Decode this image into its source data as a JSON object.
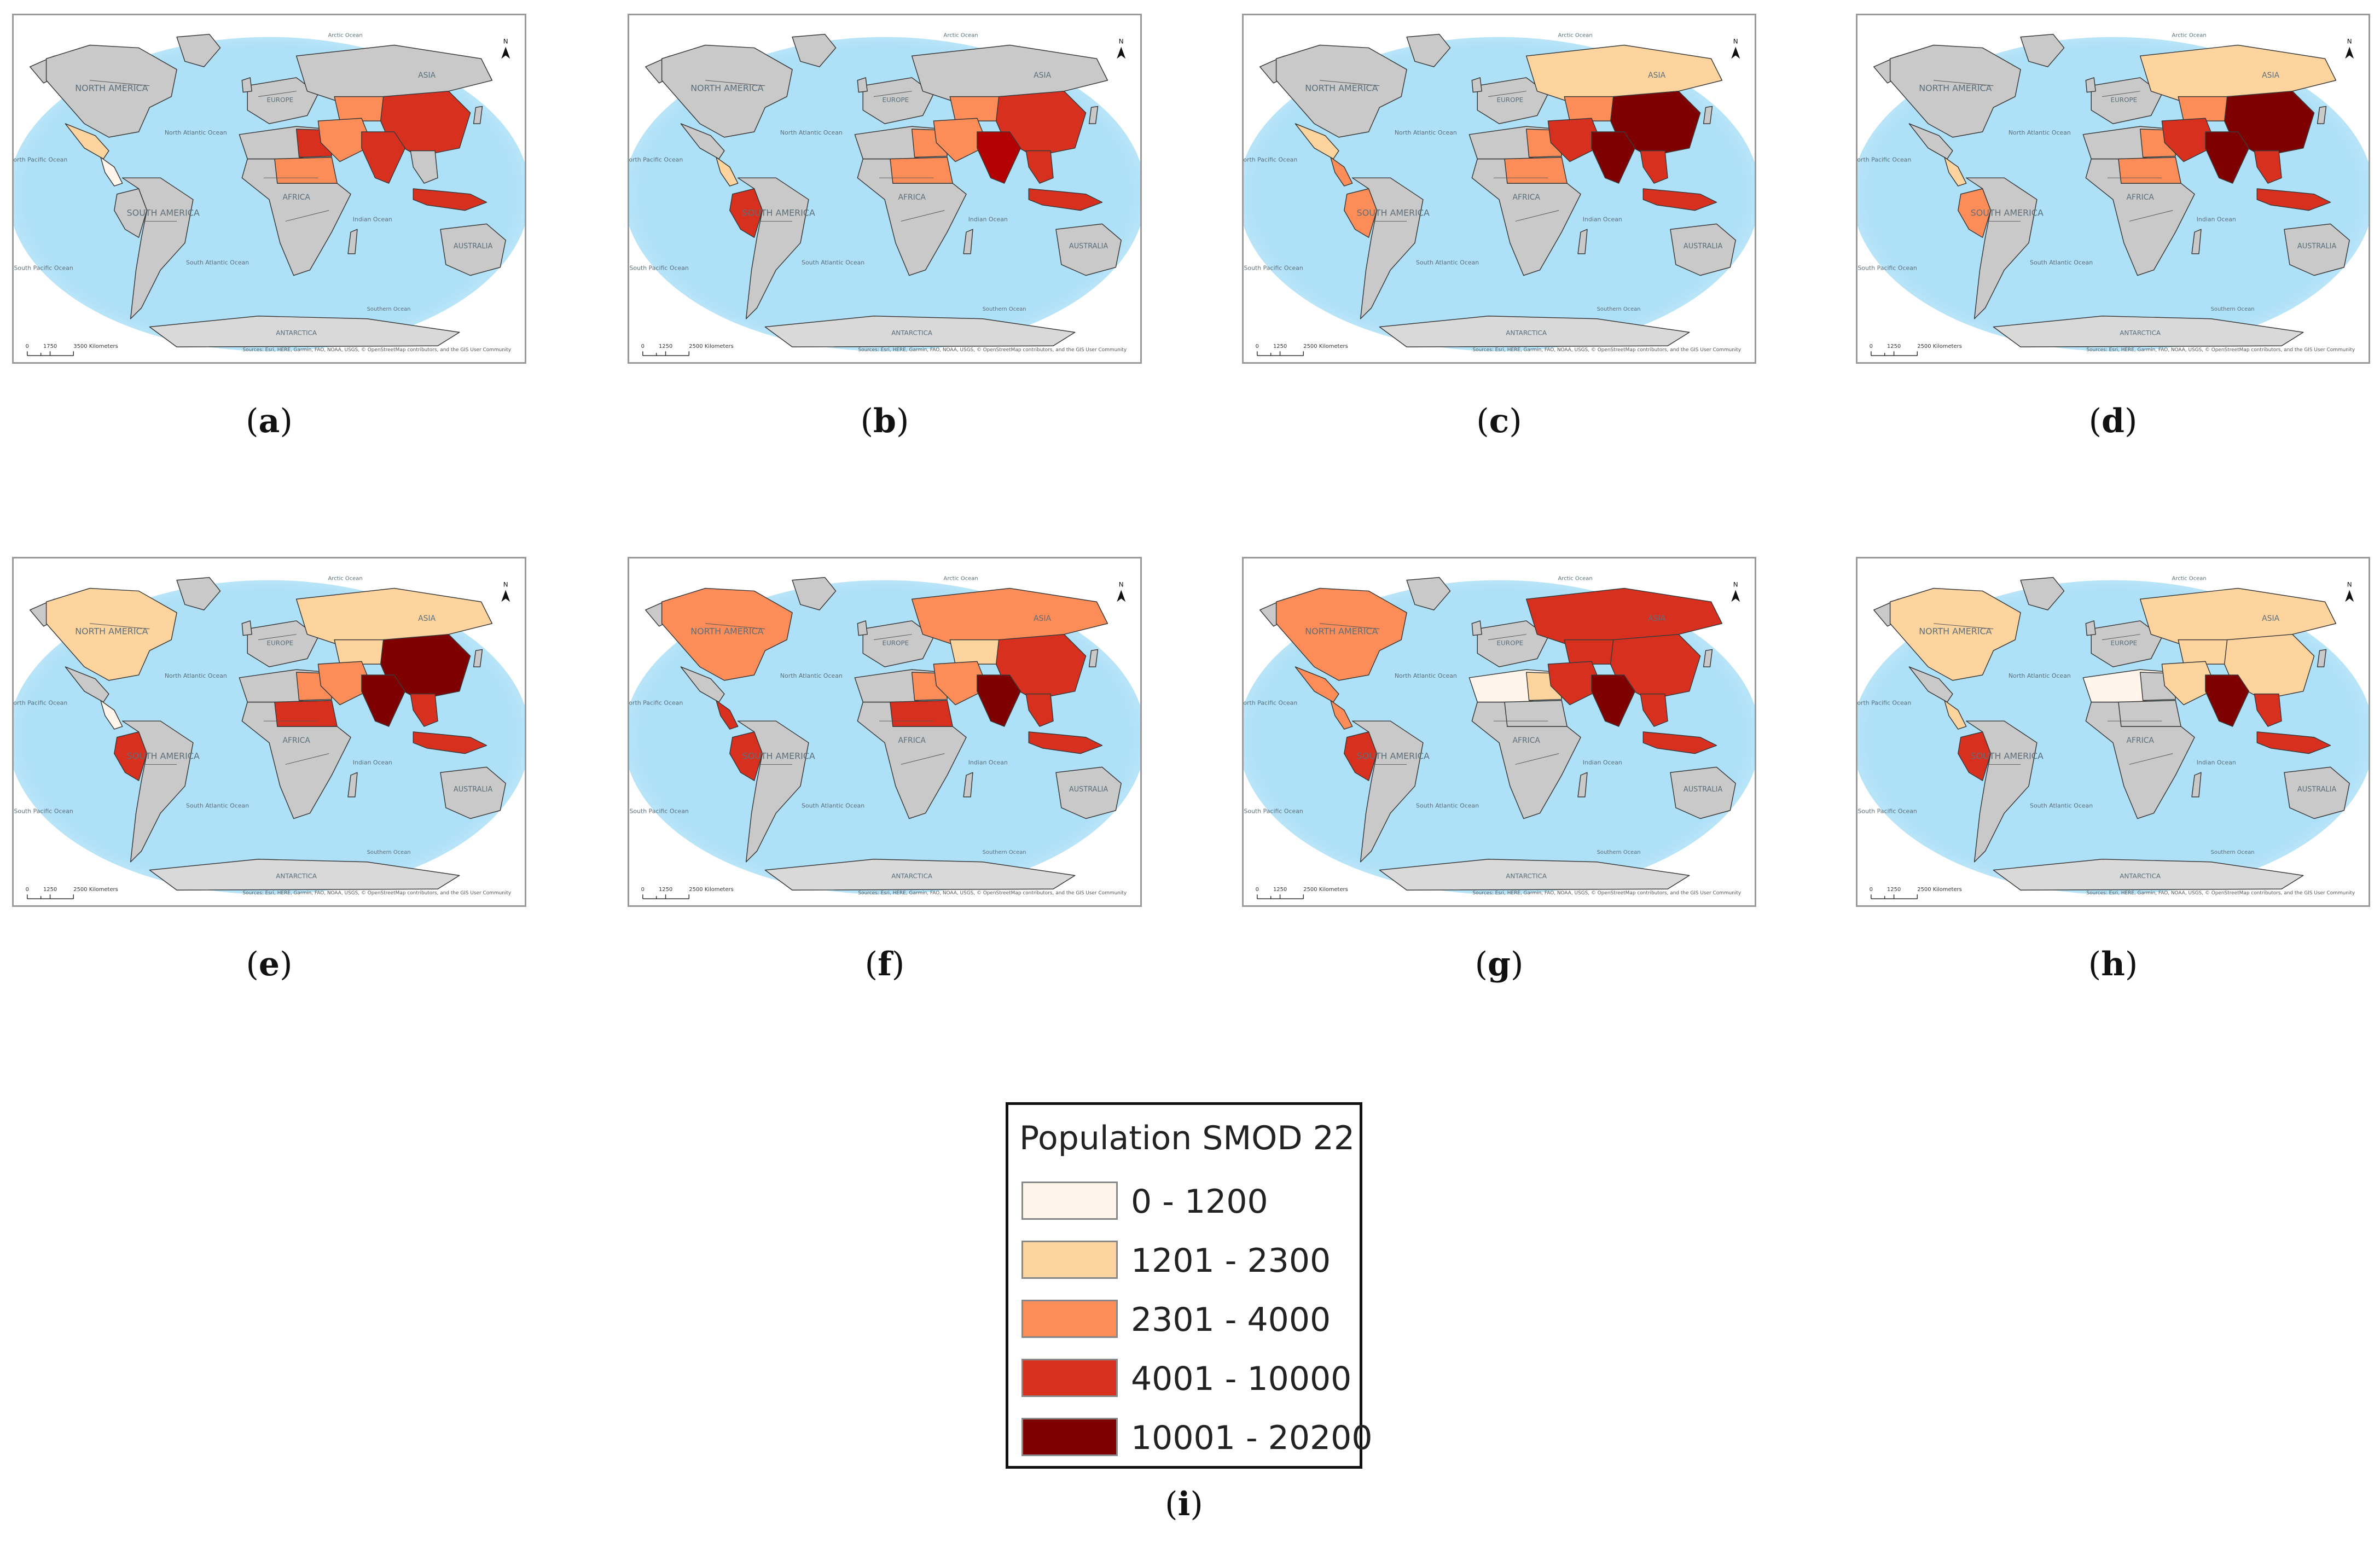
{
  "panels": [
    {
      "label": "a",
      "scale_bar": {
        "zero": "0",
        "mid": "1750",
        "max": "3500 Kilometers"
      },
      "attribution": "Sources: Esri, HERE, Garmin, FAO, NOAA, USGS, © OpenStreetMap contributors, and the GIS User Community",
      "countries": {
        "north_america": "#c9c9c9",
        "mexico": "#fdd49e",
        "central_america": "#fff5eb",
        "south_america": "#c9c9c9",
        "peru_area": "#c9c9c9",
        "africa_north": "#c9c9c9",
        "sudan": "#fc8d59",
        "egypt": "#d7301f",
        "russia": "#c9c9c9",
        "middle_east": "#fc8d59",
        "central_asia": "#fc8d59",
        "china": "#d7301f",
        "india": "#d7301f",
        "se_asia": "#c9c9c9",
        "indonesia": "#d7301f",
        "australia": "#c9c9c9"
      }
    },
    {
      "label": "b",
      "scale_bar": {
        "zero": "0",
        "mid": "1250",
        "max": "2500 Kilometers"
      },
      "attribution": "Sources: Esri, HERE, Garmin, FAO, NOAA, USGS, © OpenStreetMap contributors, and the GIS User Community",
      "countries": {
        "north_america": "#c9c9c9",
        "mexico": "#c9c9c9",
        "central_america": "#fdd49e",
        "south_america": "#c9c9c9",
        "peru_area": "#d7301f",
        "africa_north": "#c9c9c9",
        "sudan": "#fc8d59",
        "egypt": "#fc8d59",
        "russia": "#c9c9c9",
        "middle_east": "#fc8d59",
        "central_asia": "#fc8d59",
        "china": "#d7301f",
        "india": "#b30000",
        "se_asia": "#d7301f",
        "indonesia": "#d7301f",
        "australia": "#c9c9c9"
      }
    },
    {
      "label": "c",
      "scale_bar": {
        "zero": "0",
        "mid": "1250",
        "max": "2500 Kilometers"
      },
      "attribution": "Sources: Esri, HERE, Garmin, FAO, NOAA, USGS, © OpenStreetMap contributors, and the GIS User Community",
      "countries": {
        "north_america": "#c9c9c9",
        "mexico": "#fdd49e",
        "central_america": "#fc8d59",
        "south_america": "#c9c9c9",
        "peru_area": "#fc8d59",
        "africa_north": "#c9c9c9",
        "sudan": "#fc8d59",
        "egypt": "#fc8d59",
        "russia": "#fdd49e",
        "middle_east": "#d7301f",
        "central_asia": "#fc8d59",
        "china": "#7f0000",
        "india": "#7f0000",
        "se_asia": "#d7301f",
        "indonesia": "#d7301f",
        "australia": "#c9c9c9"
      }
    },
    {
      "label": "d",
      "scale_bar": {
        "zero": "0",
        "mid": "1250",
        "max": "2500 Kilometers"
      },
      "attribution": "Sources: Esri, HERE, Garmin, FAO, NOAA, USGS, © OpenStreetMap contributors, and the GIS User Community",
      "countries": {
        "north_america": "#c9c9c9",
        "mexico": "#c9c9c9",
        "central_america": "#fdd49e",
        "south_america": "#c9c9c9",
        "peru_area": "#fc8d59",
        "africa_north": "#c9c9c9",
        "sudan": "#fc8d59",
        "egypt": "#fc8d59",
        "russia": "#fdd49e",
        "middle_east": "#d7301f",
        "central_asia": "#fc8d59",
        "china": "#7f0000",
        "india": "#7f0000",
        "se_asia": "#d7301f",
        "indonesia": "#d7301f",
        "australia": "#c9c9c9"
      }
    },
    {
      "label": "e",
      "scale_bar": {
        "zero": "0",
        "mid": "1250",
        "max": "2500 Kilometers"
      },
      "attribution": "Sources: Esri, HERE, Garmin, FAO, NOAA, USGS, © OpenStreetMap contributors, and the GIS User Community",
      "countries": {
        "north_america": "#fdd49e",
        "mexico": "#c9c9c9",
        "central_america": "#fff5eb",
        "south_america": "#c9c9c9",
        "peru_area": "#d7301f",
        "africa_north": "#c9c9c9",
        "sudan": "#d7301f",
        "egypt": "#fc8d59",
        "russia": "#fdd49e",
        "middle_east": "#fc8d59",
        "central_asia": "#fdd49e",
        "china": "#7f0000",
        "india": "#7f0000",
        "se_asia": "#d7301f",
        "indonesia": "#d7301f",
        "australia": "#c9c9c9"
      }
    },
    {
      "label": "f",
      "scale_bar": {
        "zero": "0",
        "mid": "1250",
        "max": "2500 Kilometers"
      },
      "attribution": "Sources: Esri, HERE, Garmin, FAO, NOAA, USGS, © OpenStreetMap contributors, and the GIS User Community",
      "countries": {
        "north_america": "#fc8d59",
        "mexico": "#c9c9c9",
        "central_america": "#d7301f",
        "south_america": "#c9c9c9",
        "peru_area": "#d7301f",
        "africa_north": "#c9c9c9",
        "sudan": "#d7301f",
        "egypt": "#fc8d59",
        "russia": "#fc8d59",
        "middle_east": "#fc8d59",
        "central_asia": "#fdd49e",
        "china": "#d7301f",
        "india": "#7f0000",
        "se_asia": "#d7301f",
        "indonesia": "#d7301f",
        "australia": "#c9c9c9"
      }
    },
    {
      "label": "g",
      "scale_bar": {
        "zero": "0",
        "mid": "1250",
        "max": "2500 Kilometers"
      },
      "attribution": "Sources: Esri, HERE, Garmin, FAO, NOAA, USGS, © OpenStreetMap contributors, and the GIS User Community",
      "countries": {
        "north_america": "#fc8d59",
        "mexico": "#fc8d59",
        "central_america": "#fc8d59",
        "south_america": "#c9c9c9",
        "peru_area": "#d7301f",
        "africa_north": "#fff5eb",
        "sudan": "#c9c9c9",
        "egypt": "#fdd49e",
        "russia": "#d7301f",
        "middle_east": "#d7301f",
        "central_asia": "#d7301f",
        "china": "#d7301f",
        "india": "#7f0000",
        "se_asia": "#d7301f",
        "indonesia": "#d7301f",
        "australia": "#c9c9c9"
      }
    },
    {
      "label": "h",
      "scale_bar": {
        "zero": "0",
        "mid": "1250",
        "max": "2500 Kilometers"
      },
      "attribution": "Sources: Esri, HERE, Garmin, FAO, NOAA, USGS, © OpenStreetMap contributors, and the GIS User Community",
      "countries": {
        "north_america": "#fdd49e",
        "mexico": "#c9c9c9",
        "central_america": "#fdd49e",
        "south_america": "#c9c9c9",
        "peru_area": "#d7301f",
        "africa_north": "#fff5eb",
        "sudan": "#c9c9c9",
        "egypt": "#c9c9c9",
        "russia": "#fdd49e",
        "middle_east": "#fdd49e",
        "central_asia": "#fdd49e",
        "china": "#fdd49e",
        "india": "#7f0000",
        "se_asia": "#d7301f",
        "indonesia": "#d7301f",
        "australia": "#c9c9c9"
      }
    }
  ],
  "map_labels": {
    "north_america": "NORTH AMERICA",
    "south_america": "SOUTH AMERICA",
    "africa": "AFRICA",
    "europe": "EUROPE",
    "asia": "ASIA",
    "australia": "AUSTRALIA",
    "antarctica": "ANTARCTICA",
    "north_pacific": "North Pacific Ocean",
    "south_pacific": "South Pacific Ocean",
    "north_atlantic": "North Atlantic Ocean",
    "south_atlantic": "South Atlantic Ocean",
    "indian_ocean": "Indian Ocean",
    "arctic_ocean": "Arctic Ocean",
    "southern_ocean": "Southern Ocean",
    "north_arrow": "N"
  },
  "legend": {
    "title": "Population SMOD 22",
    "caption": "i",
    "classes": [
      {
        "label": "0 - 1200",
        "color": "#fff5eb"
      },
      {
        "label": "1201 - 2300",
        "color": "#fdd49e"
      },
      {
        "label": "2301 - 4000",
        "color": "#fc8d59"
      },
      {
        "label": "4001 - 10000",
        "color": "#d7301f"
      },
      {
        "label": "10001 - 20200",
        "color": "#7f0000"
      }
    ]
  },
  "colors": {
    "ocean": "#aee0f7",
    "ocean_edge": "#c9ebfb",
    "land_default": "#c9c9c9",
    "border": "#3a3a3a"
  }
}
